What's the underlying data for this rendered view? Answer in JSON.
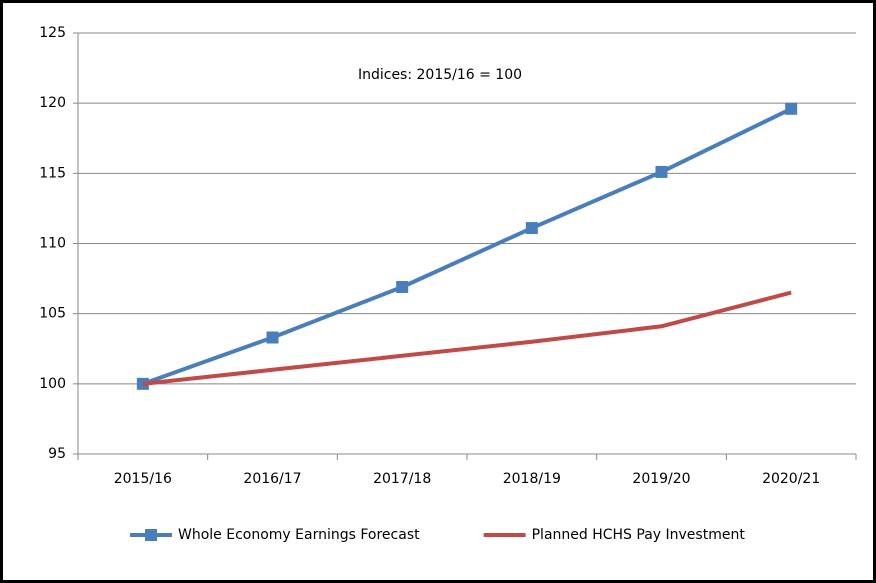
{
  "chart_data": {
    "type": "line",
    "annotation": "Indices: 2015/16 = 100",
    "categories": [
      "2015/16",
      "2016/17",
      "2017/18",
      "2018/19",
      "2019/20",
      "2020/21"
    ],
    "series": [
      {
        "name": "Whole Economy Earnings Forecast",
        "color": "#4a7ebb",
        "marker": "square",
        "values": [
          100,
          103.3,
          106.9,
          111.1,
          115.1,
          119.6
        ]
      },
      {
        "name": "Planned HCHS Pay Investment",
        "color": "#be4b48",
        "marker": "none",
        "values": [
          100,
          101,
          102,
          103,
          104.1,
          106.5
        ]
      }
    ],
    "ylim": [
      95,
      125
    ],
    "yticks": [
      95,
      100,
      105,
      110,
      115,
      120,
      125
    ],
    "grid": true,
    "legend": "bottom"
  }
}
